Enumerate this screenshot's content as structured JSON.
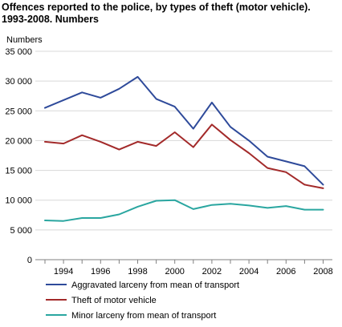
{
  "chart_data": {
    "type": "line",
    "title": "Offences reported to the police, by types of theft (motor vehicle). 1993-2008. Numbers",
    "title_lines": [
      "Offences reported to the police, by types of theft (motor vehicle).",
      "1993-2008. Numbers"
    ],
    "ylabel": "Numbers",
    "xlabel": "",
    "ylim": [
      0,
      35000
    ],
    "y_ticks": [
      0,
      5000,
      10000,
      15000,
      20000,
      25000,
      30000,
      35000
    ],
    "y_tick_labels": [
      "0",
      "5 000",
      "10 000",
      "15 000",
      "20 000",
      "25 000",
      "30 000",
      "35 000"
    ],
    "x": [
      1993,
      1994,
      1995,
      1996,
      1997,
      1998,
      1999,
      2000,
      2001,
      2002,
      2003,
      2004,
      2005,
      2006,
      2007,
      2008
    ],
    "x_tick_labels": [
      "1994",
      "1996",
      "1998",
      "2000",
      "2002",
      "2004",
      "2006",
      "2008"
    ],
    "grid": "horizontal",
    "legend_position": "bottom",
    "series": [
      {
        "name": "Aggravated larceny from mean of transport",
        "color": "#2e4a9a",
        "values": [
          25500,
          26800,
          28100,
          27200,
          28700,
          30700,
          27000,
          25700,
          22000,
          26400,
          22300,
          20000,
          17300,
          16500,
          15700,
          12600
        ]
      },
      {
        "name": "Theft of motor vehicle",
        "color": "#a32a2a",
        "values": [
          19800,
          19500,
          20900,
          19800,
          18500,
          19800,
          19100,
          21400,
          18900,
          22700,
          20100,
          17900,
          15400,
          14700,
          12600,
          12000
        ]
      },
      {
        "name": "Minor larceny from mean of transport",
        "color": "#2aa6a0",
        "values": [
          6600,
          6500,
          7000,
          7000,
          7600,
          8900,
          9900,
          10000,
          8500,
          9200,
          9400,
          9100,
          8700,
          9000,
          8400,
          8400
        ]
      }
    ]
  }
}
